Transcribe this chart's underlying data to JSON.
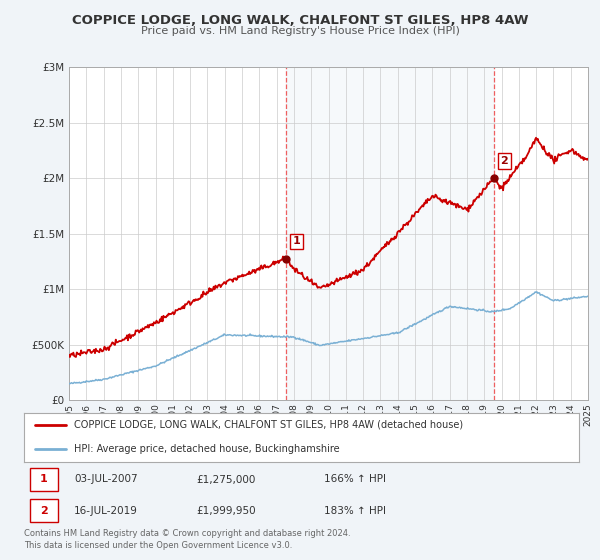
{
  "title": "COPPICE LODGE, LONG WALK, CHALFONT ST GILES, HP8 4AW",
  "subtitle": "Price paid vs. HM Land Registry's House Price Index (HPI)",
  "bg_color": "#f0f4f8",
  "plot_bg_color": "#ffffff",
  "grid_color": "#cccccc",
  "red_line_color": "#cc0000",
  "blue_line_color": "#7ab0d4",
  "sale1_year": 2007.54,
  "sale1_value": 1275000,
  "sale2_year": 2019.54,
  "sale2_value": 1999950,
  "legend_box_label1": "COPPICE LODGE, LONG WALK, CHALFONT ST GILES, HP8 4AW (detached house)",
  "legend_box_label2": "HPI: Average price, detached house, Buckinghamshire",
  "annotation1_label": "1",
  "annotation1_date": "03-JUL-2007",
  "annotation1_price": "£1,275,000",
  "annotation1_pct": "166% ↑ HPI",
  "annotation2_label": "2",
  "annotation2_date": "16-JUL-2019",
  "annotation2_price": "£1,999,950",
  "annotation2_pct": "183% ↑ HPI",
  "footer": "Contains HM Land Registry data © Crown copyright and database right 2024.\nThis data is licensed under the Open Government Licence v3.0.",
  "xmin": 1995,
  "xmax": 2025,
  "ymin": 0,
  "ymax": 3000000
}
